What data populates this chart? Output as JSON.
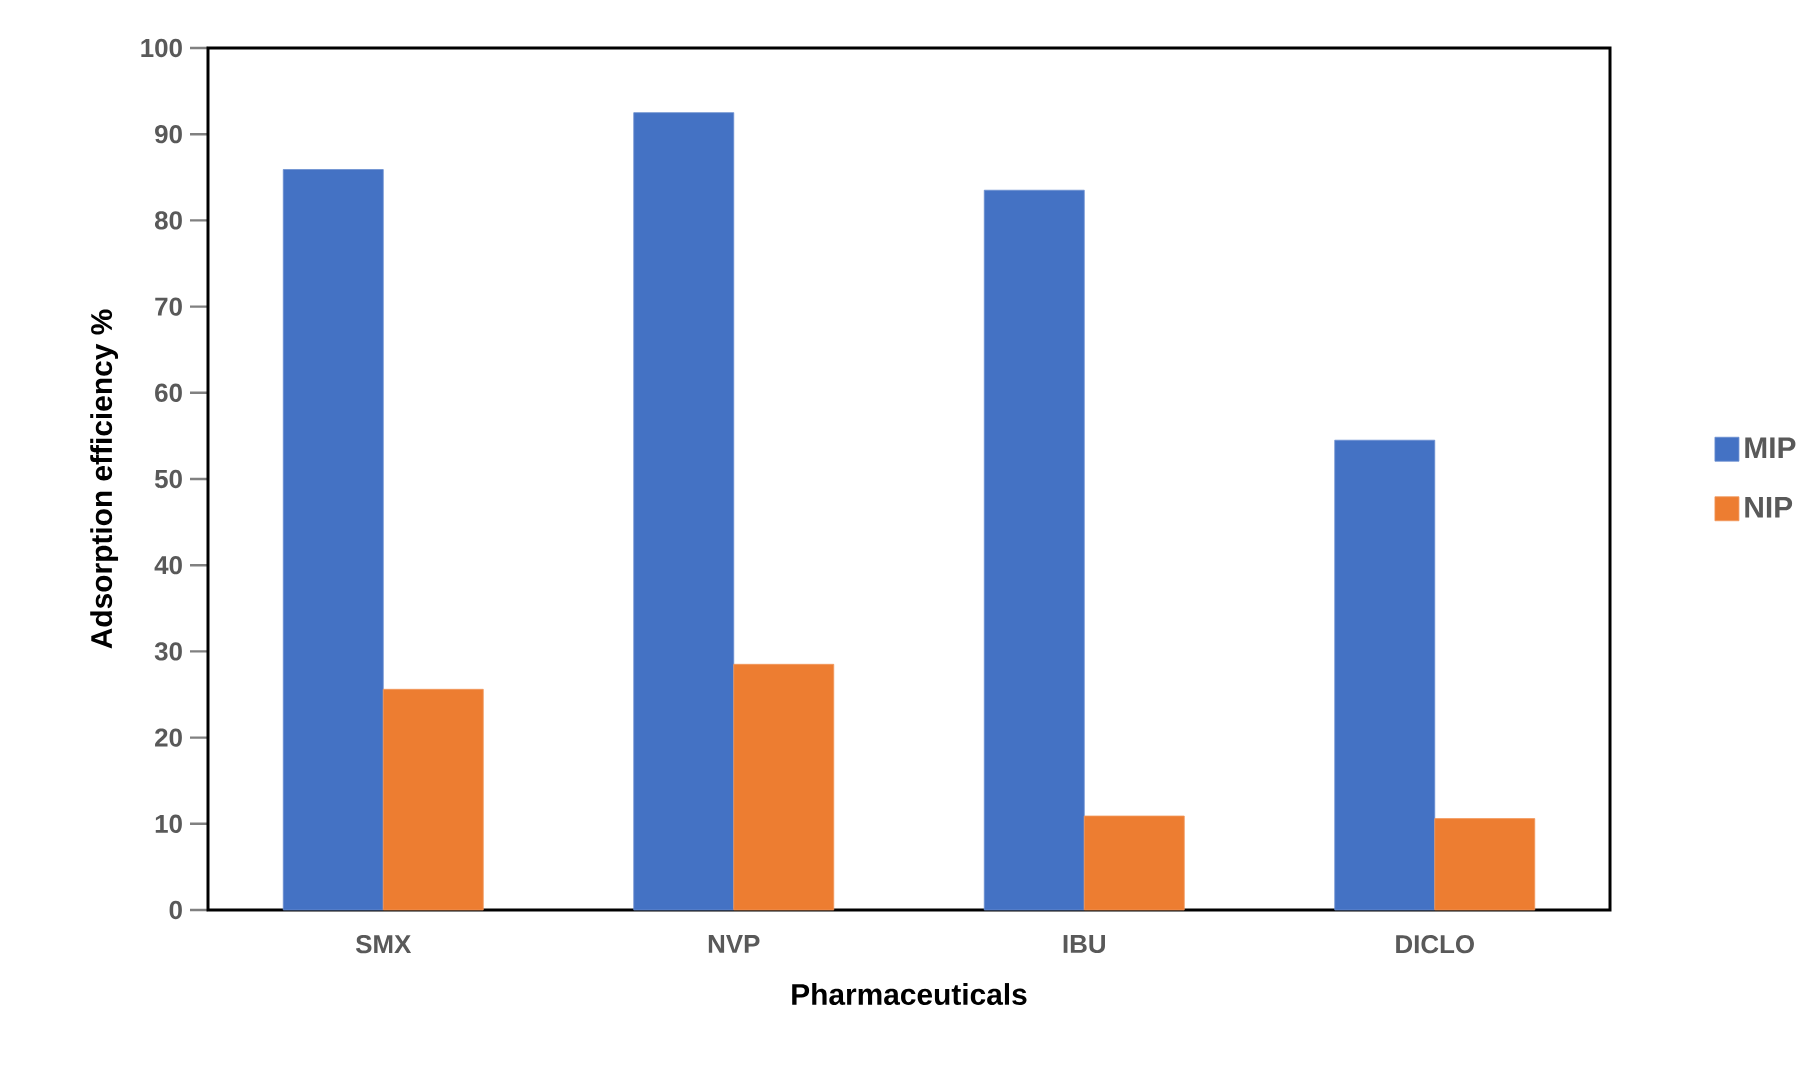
{
  "chart_data": {
    "type": "bar",
    "xlabel": "Pharmaceuticals",
    "ylabel": "Adsorption efficiency %",
    "categories": [
      "SMX",
      "NVP",
      "IBU",
      "DICLO"
    ],
    "series": [
      {
        "name": "MIP",
        "color": "#4472c4",
        "values": [
          85.9,
          92.5,
          83.5,
          54.5
        ]
      },
      {
        "name": "NIP",
        "color": "#ed7d31",
        "values": [
          25.6,
          28.5,
          10.9,
          10.6
        ]
      }
    ],
    "ylim": [
      0,
      100
    ],
    "yticks": [
      0,
      10,
      20,
      30,
      40,
      50,
      60,
      70,
      80,
      90,
      100
    ],
    "grid": false,
    "legend": "right"
  }
}
